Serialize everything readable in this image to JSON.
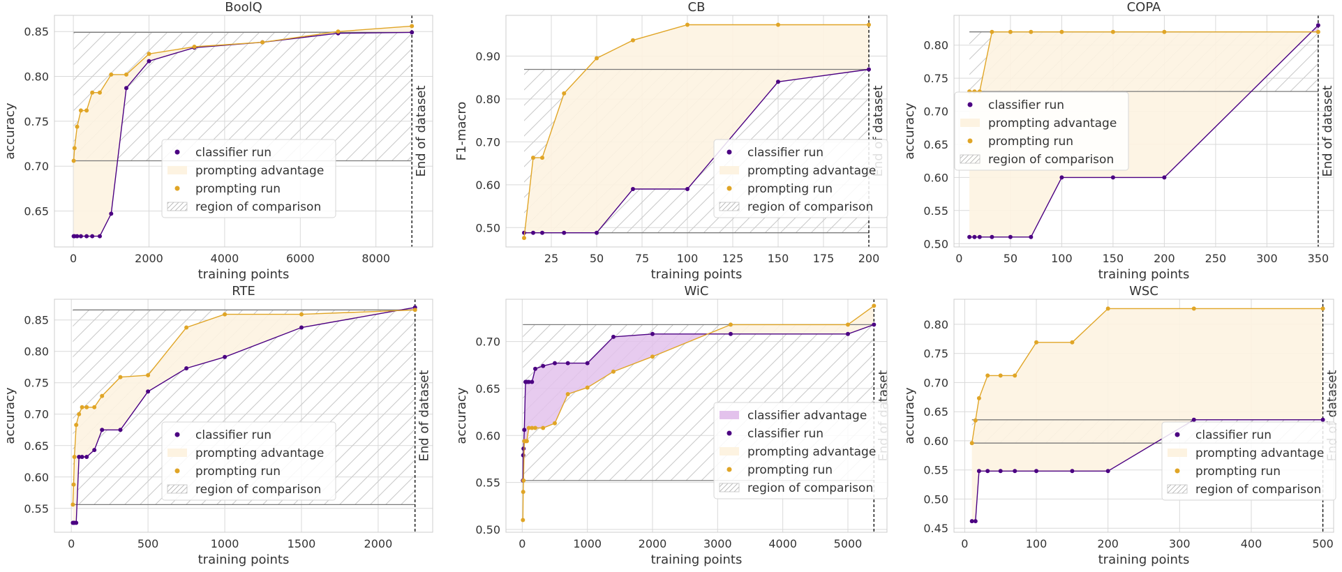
{
  "colors": {
    "classifier": "#4b0082",
    "prompting": "#e0a526",
    "prompt_adv_fill": "#fdf3e1",
    "clf_adv_fill": "#e3c2ec",
    "grid": "#d9d9d9",
    "region_line": "#7a7a7a",
    "hatch": "#c8c8c8"
  },
  "legend_labels": {
    "classifier_advantage": "classifier advantage",
    "classifier_run": "classifier run",
    "prompting_advantage": "prompting advantage",
    "prompting_run": "prompting run",
    "region_of_comparison": "region of comparison"
  },
  "end_label": "End of dataset",
  "chart_data": [
    {
      "type": "line",
      "title": "BoolQ",
      "xlabel": "training points",
      "ylabel": "accuracy",
      "xlim": [
        -500,
        9500
      ],
      "ylim": [
        0.61,
        0.868
      ],
      "xticks": [
        0,
        2000,
        4000,
        6000,
        8000
      ],
      "xtick_labels": [
        "0",
        "2000",
        "4000",
        "6000",
        "8000"
      ],
      "yticks": [
        0.65,
        0.7,
        0.75,
        0.8,
        0.85
      ],
      "ytick_labels": [
        "0.65",
        "0.70",
        "0.75",
        "0.80",
        "0.85"
      ],
      "end_x": 8950,
      "region": [
        0.706,
        0.849
      ],
      "grid": true,
      "legend": "lower center",
      "legend_items": [
        "classifier_run",
        "prompting_advantage",
        "prompting_run",
        "region_of_comparison"
      ],
      "series": [
        {
          "name": "classifier run",
          "x": [
            10,
            32,
            100,
            200,
            350,
            500,
            700,
            1000,
            1400,
            2000,
            3200,
            5000,
            7000,
            8950
          ],
          "values": [
            0.622,
            0.622,
            0.622,
            0.622,
            0.622,
            0.622,
            0.622,
            0.647,
            0.787,
            0.817,
            0.832,
            0.838,
            0.848,
            0.849
          ]
        },
        {
          "name": "prompting run",
          "x": [
            10,
            32,
            100,
            200,
            350,
            500,
            700,
            1000,
            1400,
            2000,
            3200,
            5000,
            7000,
            8950
          ],
          "values": [
            0.706,
            0.72,
            0.744,
            0.762,
            0.762,
            0.782,
            0.782,
            0.802,
            0.802,
            0.825,
            0.833,
            0.838,
            0.85,
            0.856
          ]
        }
      ]
    },
    {
      "type": "line",
      "title": "CB",
      "xlabel": "training points",
      "ylabel": "F1-macro",
      "xlim": [
        0,
        210
      ],
      "ylim": [
        0.455,
        0.995
      ],
      "xticks": [
        25,
        50,
        75,
        100,
        125,
        150,
        175,
        200
      ],
      "xtick_labels": [
        "25",
        "50",
        "75",
        "100",
        "125",
        "150",
        "175",
        "200"
      ],
      "yticks": [
        0.5,
        0.6,
        0.7,
        0.8,
        0.9
      ],
      "ytick_labels": [
        "0.50",
        "0.60",
        "0.70",
        "0.80",
        "0.90"
      ],
      "end_x": 200,
      "region": [
        0.488,
        0.869
      ],
      "grid": true,
      "legend": "lower right",
      "legend_items": [
        "classifier_run",
        "prompting_advantage",
        "prompting_run",
        "region_of_comparison"
      ],
      "series": [
        {
          "name": "classifier run",
          "x": [
            10,
            15,
            20,
            32,
            50,
            70,
            100,
            150,
            200
          ],
          "values": [
            0.488,
            0.488,
            0.488,
            0.488,
            0.488,
            0.59,
            0.59,
            0.84,
            0.869
          ]
        },
        {
          "name": "prompting run",
          "x": [
            10,
            15,
            20,
            32,
            50,
            70,
            100,
            150,
            200
          ],
          "values": [
            0.476,
            0.663,
            0.663,
            0.813,
            0.895,
            0.937,
            0.973,
            0.973,
            0.973
          ]
        }
      ]
    },
    {
      "type": "line",
      "title": "COPA",
      "xlabel": "training points",
      "ylabel": "accuracy",
      "xlim": [
        -5,
        365
      ],
      "ylim": [
        0.495,
        0.845
      ],
      "xticks": [
        0,
        50,
        100,
        150,
        200,
        250,
        300,
        350
      ],
      "xtick_labels": [
        "0",
        "50",
        "100",
        "150",
        "200",
        "250",
        "300",
        "350"
      ],
      "yticks": [
        0.5,
        0.55,
        0.6,
        0.65,
        0.7,
        0.75,
        0.8
      ],
      "ytick_labels": [
        "0.50",
        "0.55",
        "0.60",
        "0.65",
        "0.70",
        "0.75",
        "0.80"
      ],
      "end_x": 350,
      "region": [
        0.73,
        0.82
      ],
      "grid": true,
      "legend": "center left",
      "legend_items": [
        "classifier_run",
        "prompting_advantage",
        "prompting_run",
        "region_of_comparison"
      ],
      "series": [
        {
          "name": "classifier run",
          "x": [
            10,
            15,
            20,
            32,
            50,
            70,
            100,
            150,
            200,
            350
          ],
          "values": [
            0.51,
            0.51,
            0.51,
            0.51,
            0.51,
            0.51,
            0.6,
            0.6,
            0.6,
            0.83
          ]
        },
        {
          "name": "prompting run",
          "x": [
            10,
            15,
            20,
            32,
            50,
            70,
            100,
            150,
            200,
            350
          ],
          "values": [
            0.73,
            0.73,
            0.73,
            0.82,
            0.82,
            0.82,
            0.82,
            0.82,
            0.82,
            0.82
          ]
        }
      ]
    },
    {
      "type": "line",
      "title": "RTE",
      "xlabel": "training points",
      "ylabel": "accuracy",
      "xlim": [
        -110,
        2355
      ],
      "ylim": [
        0.512,
        0.883
      ],
      "xticks": [
        0,
        500,
        1000,
        1500,
        2000
      ],
      "xtick_labels": [
        "0",
        "500",
        "1000",
        "1500",
        "2000"
      ],
      "yticks": [
        0.55,
        0.6,
        0.65,
        0.7,
        0.75,
        0.8,
        0.85
      ],
      "ytick_labels": [
        "0.55",
        "0.60",
        "0.65",
        "0.70",
        "0.75",
        "0.80",
        "0.85"
      ],
      "end_x": 2240,
      "region": [
        0.556,
        0.866
      ],
      "grid": true,
      "legend": "lower center",
      "legend_items": [
        "classifier_run",
        "prompting_advantage",
        "prompting_run",
        "region_of_comparison"
      ],
      "series": [
        {
          "name": "classifier run",
          "x": [
            10,
            15,
            20,
            32,
            50,
            70,
            100,
            150,
            200,
            320,
            500,
            750,
            1000,
            1500,
            2240
          ],
          "values": [
            0.527,
            0.527,
            0.527,
            0.527,
            0.632,
            0.632,
            0.632,
            0.643,
            0.675,
            0.675,
            0.736,
            0.773,
            0.791,
            0.838,
            0.87
          ]
        },
        {
          "name": "prompting run",
          "x": [
            10,
            15,
            20,
            32,
            50,
            70,
            100,
            150,
            200,
            320,
            500,
            750,
            1000,
            1500,
            2240
          ],
          "values": [
            0.556,
            0.588,
            0.632,
            0.683,
            0.7,
            0.711,
            0.711,
            0.711,
            0.729,
            0.759,
            0.762,
            0.838,
            0.859,
            0.859,
            0.866
          ]
        }
      ]
    },
    {
      "type": "line",
      "title": "WiC",
      "xlabel": "training points",
      "ylabel": "accuracy",
      "xlim": [
        -250,
        5600
      ],
      "ylim": [
        0.497,
        0.745
      ],
      "xticks": [
        0,
        1000,
        2000,
        3000,
        4000,
        5000
      ],
      "xtick_labels": [
        "0",
        "1000",
        "2000",
        "3000",
        "4000",
        "5000"
      ],
      "yticks": [
        0.5,
        0.55,
        0.6,
        0.65,
        0.7
      ],
      "ytick_labels": [
        "0.50",
        "0.55",
        "0.60",
        "0.65",
        "0.70"
      ],
      "end_x": 5400,
      "region": [
        0.552,
        0.718
      ],
      "grid": true,
      "legend": "lower right",
      "legend_items": [
        "classifier_advantage",
        "classifier_run",
        "prompting_advantage",
        "prompting_run",
        "region_of_comparison"
      ],
      "series": [
        {
          "name": "classifier run",
          "x": [
            10,
            15,
            20,
            32,
            50,
            70,
            100,
            150,
            200,
            320,
            500,
            700,
            1000,
            1400,
            2000,
            3200,
            5000,
            5400
          ],
          "values": [
            0.552,
            0.579,
            0.586,
            0.606,
            0.657,
            0.657,
            0.657,
            0.657,
            0.671,
            0.674,
            0.677,
            0.677,
            0.677,
            0.705,
            0.708,
            0.708,
            0.708,
            0.718
          ]
        },
        {
          "name": "prompting run",
          "x": [
            10,
            15,
            20,
            32,
            50,
            70,
            100,
            150,
            200,
            320,
            500,
            700,
            1000,
            1400,
            2000,
            3200,
            5000,
            5400
          ],
          "values": [
            0.51,
            0.54,
            0.552,
            0.594,
            0.594,
            0.594,
            0.608,
            0.608,
            0.608,
            0.608,
            0.613,
            0.644,
            0.651,
            0.668,
            0.684,
            0.718,
            0.718,
            0.738
          ]
        }
      ]
    },
    {
      "type": "line",
      "title": "WSC",
      "xlabel": "training points",
      "ylabel": "accuracy",
      "xlim": [
        -15,
        515
      ],
      "ylim": [
        0.443,
        0.843
      ],
      "xticks": [
        0,
        100,
        200,
        300,
        400,
        500
      ],
      "xtick_labels": [
        "0",
        "100",
        "200",
        "300",
        "400",
        "500"
      ],
      "yticks": [
        0.45,
        0.5,
        0.55,
        0.6,
        0.65,
        0.7,
        0.75,
        0.8
      ],
      "ytick_labels": [
        "0.45",
        "0.50",
        "0.55",
        "0.60",
        "0.65",
        "0.70",
        "0.75",
        "0.80"
      ],
      "end_x": 500,
      "region": [
        0.596,
        0.636
      ],
      "grid": true,
      "legend": "lower right",
      "legend_items": [
        "classifier_run",
        "prompting_advantage",
        "prompting_run",
        "region_of_comparison"
      ],
      "series": [
        {
          "name": "classifier run",
          "x": [
            10,
            15,
            20,
            32,
            50,
            70,
            100,
            150,
            200,
            320,
            500
          ],
          "values": [
            0.462,
            0.462,
            0.548,
            0.548,
            0.548,
            0.548,
            0.548,
            0.548,
            0.548,
            0.636,
            0.636
          ]
        },
        {
          "name": "prompting run",
          "x": [
            10,
            15,
            20,
            32,
            50,
            70,
            100,
            150,
            200,
            320,
            500
          ],
          "values": [
            0.596,
            0.635,
            0.673,
            0.712,
            0.712,
            0.712,
            0.769,
            0.769,
            0.827,
            0.827,
            0.827
          ]
        }
      ]
    }
  ]
}
